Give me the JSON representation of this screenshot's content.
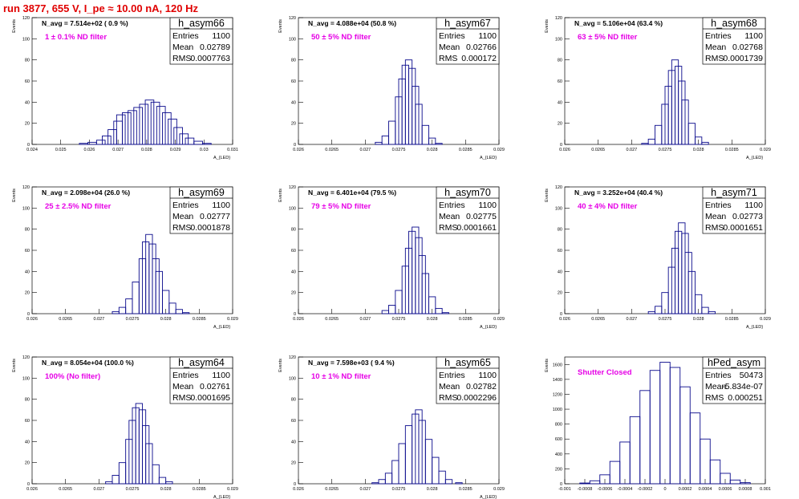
{
  "title": "run 3877,   655 V, I_pe ≈ 10.00 nA, 120 Hz",
  "colors": {
    "title": "#e00000",
    "histogram_line": "#0a0a8c",
    "annotation": "#e600e6"
  },
  "chart_data": [
    {
      "type": "bar",
      "name": "h_asym66",
      "yaxis_label": "Events",
      "xaxis_label": "A_{LED}",
      "xlim": [
        0.024,
        0.031
      ],
      "ylim": [
        0,
        120
      ],
      "xticks": [
        "0.024",
        "0.025",
        "0.026",
        "0.027",
        "0.028",
        "0.029",
        "0.03",
        "0.031"
      ],
      "yticks": [
        "0",
        "20",
        "40",
        "60",
        "80",
        "100",
        "120"
      ],
      "stats": {
        "entries": "1100",
        "mean": "0.02789",
        "rms": "0.0007763"
      },
      "navg": "N_avg = 7.514e+02 ( 0.9 %)",
      "filter": "1 ± 0.1% ND filter",
      "x": [
        0.0258,
        0.0261,
        0.0264,
        0.0266,
        0.0268,
        0.027,
        0.0271,
        0.0273,
        0.0275,
        0.0277,
        0.0279,
        0.0281,
        0.0283,
        0.0285,
        0.0287,
        0.0289,
        0.0291,
        0.0293,
        0.0295,
        0.0298,
        0.0301
      ],
      "values": [
        1,
        2,
        4,
        8,
        14,
        22,
        28,
        30,
        32,
        35,
        38,
        42,
        40,
        36,
        30,
        24,
        16,
        10,
        6,
        3,
        1
      ]
    },
    {
      "type": "bar",
      "name": "h_asym67",
      "yaxis_label": "Events",
      "xaxis_label": "A_{LED}",
      "xlim": [
        0.026,
        0.029
      ],
      "ylim": [
        0,
        120
      ],
      "xticks": [
        "0.026",
        "0.0265",
        "0.027",
        "0.0275",
        "0.028",
        "0.0285",
        "0.029"
      ],
      "yticks": [
        "0",
        "20",
        "40",
        "60",
        "80",
        "100",
        "120"
      ],
      "stats": {
        "entries": "1100",
        "mean": "0.02766",
        "rms": "0.000172"
      },
      "navg": "N_avg = 4.088e+04 (50.8 %)",
      "filter": "50 ± 5% ND filter",
      "x": [
        0.0272,
        0.0273,
        0.0274,
        0.0275,
        0.02755,
        0.0276,
        0.02765,
        0.0277,
        0.02775,
        0.0278,
        0.0279,
        0.028,
        0.0281
      ],
      "values": [
        2,
        8,
        22,
        45,
        62,
        75,
        80,
        72,
        55,
        38,
        18,
        6,
        1
      ]
    },
    {
      "type": "bar",
      "name": "h_asym68",
      "yaxis_label": "Events",
      "xaxis_label": "A_{LED}",
      "xlim": [
        0.026,
        0.029
      ],
      "ylim": [
        0,
        120
      ],
      "xticks": [
        "0.026",
        "0.0265",
        "0.027",
        "0.0275",
        "0.028",
        "0.0285",
        "0.029"
      ],
      "yticks": [
        "0",
        "20",
        "40",
        "60",
        "80",
        "100",
        "120"
      ],
      "stats": {
        "entries": "1100",
        "mean": "0.02768",
        "rms": "0.0001739"
      },
      "navg": "N_avg = 5.106e+04 (63.4 %)",
      "filter": "63 ± 5% ND filter",
      "x": [
        0.0272,
        0.0273,
        0.0274,
        0.0275,
        0.02755,
        0.0276,
        0.02765,
        0.0277,
        0.02775,
        0.0278,
        0.0279,
        0.028,
        0.0281
      ],
      "values": [
        1,
        5,
        18,
        38,
        55,
        70,
        80,
        74,
        60,
        42,
        20,
        7,
        2
      ]
    },
    {
      "type": "bar",
      "name": "h_asym69",
      "yaxis_label": "Events",
      "xaxis_label": "A_{LED}",
      "xlim": [
        0.026,
        0.029
      ],
      "ylim": [
        0,
        120
      ],
      "xticks": [
        "0.026",
        "0.0265",
        "0.027",
        "0.0275",
        "0.028",
        "0.0285",
        "0.029"
      ],
      "yticks": [
        "0",
        "20",
        "40",
        "60",
        "80",
        "100",
        "120"
      ],
      "stats": {
        "entries": "1100",
        "mean": "0.02777",
        "rms": "0.0001878"
      },
      "navg": "N_avg = 2.098e+04 (26.0 %)",
      "filter": "25 ± 2.5% ND filter",
      "x": [
        0.02725,
        0.02735,
        0.02745,
        0.02755,
        0.02765,
        0.0277,
        0.02775,
        0.0278,
        0.02785,
        0.0279,
        0.028,
        0.0281,
        0.0282,
        0.0283
      ],
      "values": [
        2,
        6,
        14,
        30,
        52,
        68,
        75,
        66,
        52,
        40,
        22,
        10,
        4,
        1
      ]
    },
    {
      "type": "bar",
      "name": "h_asym70",
      "yaxis_label": "Events",
      "xaxis_label": "A_{LED}",
      "xlim": [
        0.026,
        0.029
      ],
      "ylim": [
        0,
        120
      ],
      "xticks": [
        "0.026",
        "0.0265",
        "0.027",
        "0.0275",
        "0.028",
        "0.0285",
        "0.029"
      ],
      "yticks": [
        "0",
        "20",
        "40",
        "60",
        "80",
        "100",
        "120"
      ],
      "stats": {
        "entries": "1100",
        "mean": "0.02775",
        "rms": "0.0001661"
      },
      "navg": "N_avg = 6.401e+04 (79.5 %)",
      "filter": "79 ± 5% ND filter",
      "x": [
        0.0273,
        0.0274,
        0.0275,
        0.0276,
        0.02765,
        0.0277,
        0.02775,
        0.0278,
        0.02785,
        0.0279,
        0.028,
        0.0281,
        0.0282
      ],
      "values": [
        3,
        8,
        22,
        45,
        62,
        78,
        82,
        72,
        55,
        38,
        16,
        5,
        1
      ]
    },
    {
      "type": "bar",
      "name": "h_asym71",
      "yaxis_label": "Events",
      "xaxis_label": "A_{LED}",
      "xlim": [
        0.026,
        0.029
      ],
      "ylim": [
        0,
        120
      ],
      "xticks": [
        "0.026",
        "0.0265",
        "0.027",
        "0.0275",
        "0.028",
        "0.0285",
        "0.029"
      ],
      "yticks": [
        "0",
        "20",
        "40",
        "60",
        "80",
        "100",
        "120"
      ],
      "stats": {
        "entries": "1100",
        "mean": "0.02773",
        "rms": "0.0001651"
      },
      "navg": "N_avg = 3.252e+04 (40.4 %)",
      "filter": "40 ± 4% ND filter",
      "x": [
        0.0273,
        0.0274,
        0.0275,
        0.0276,
        0.02765,
        0.0277,
        0.02775,
        0.0278,
        0.02785,
        0.0279,
        0.028,
        0.0281,
        0.0282
      ],
      "values": [
        2,
        7,
        20,
        44,
        62,
        78,
        86,
        76,
        58,
        40,
        18,
        6,
        2
      ]
    },
    {
      "type": "bar",
      "name": "h_asym64",
      "yaxis_label": "Events",
      "xaxis_label": "A_{LED}",
      "xlim": [
        0.026,
        0.029
      ],
      "ylim": [
        0,
        120
      ],
      "xticks": [
        "0.026",
        "0.0265",
        "0.027",
        "0.0275",
        "0.028",
        "0.0285",
        "0.029"
      ],
      "yticks": [
        "0",
        "20",
        "40",
        "60",
        "80",
        "100",
        "120"
      ],
      "stats": {
        "entries": "1100",
        "mean": "0.02761",
        "rms": "0.0001695"
      },
      "navg": "N_avg = 8.054e+04 (100.0 %)",
      "filter": "100% (No filter)",
      "x": [
        0.02715,
        0.02725,
        0.02735,
        0.02745,
        0.0275,
        0.02755,
        0.0276,
        0.02765,
        0.0277,
        0.02775,
        0.02785,
        0.02795,
        0.02805
      ],
      "values": [
        2,
        8,
        20,
        42,
        60,
        72,
        76,
        70,
        55,
        38,
        18,
        6,
        2
      ]
    },
    {
      "type": "bar",
      "name": "h_asym65",
      "yaxis_label": "Events",
      "xaxis_label": "A_{LED}",
      "xlim": [
        0.026,
        0.029
      ],
      "ylim": [
        0,
        120
      ],
      "xticks": [
        "0.026",
        "0.0265",
        "0.027",
        "0.0275",
        "0.028",
        "0.0285",
        "0.029"
      ],
      "yticks": [
        "0",
        "20",
        "40",
        "60",
        "80",
        "100",
        "120"
      ],
      "stats": {
        "entries": "1100",
        "mean": "0.02782",
        "rms": "0.0002296"
      },
      "navg": "N_avg = 7.598e+03 ( 9.4 %)",
      "filter": "10 ± 1% ND filter",
      "x": [
        0.02715,
        0.02725,
        0.02735,
        0.02745,
        0.02755,
        0.02765,
        0.02775,
        0.0278,
        0.02785,
        0.02795,
        0.02805,
        0.02815,
        0.02825,
        0.0284
      ],
      "values": [
        1,
        4,
        10,
        22,
        38,
        55,
        66,
        70,
        60,
        42,
        25,
        12,
        4,
        1
      ]
    },
    {
      "type": "bar",
      "name": "hPed_asym",
      "yaxis_label": "Events",
      "xaxis_label": "",
      "xlim": [
        -0.001,
        0.001
      ],
      "ylim": [
        0,
        1700
      ],
      "xticks": [
        "-0.001",
        "-0.0008",
        "-0.0006",
        "-0.0004",
        "-0.0002",
        "0",
        "0.0002",
        "0.0004",
        "0.0006",
        "0.0008",
        "0.001"
      ],
      "yticks": [
        "0",
        "200",
        "400",
        "600",
        "800",
        "1000",
        "1200",
        "1400",
        "1600"
      ],
      "stats": {
        "entries": "50473",
        "mean": "-5.834e-07",
        "rms": "0.000251"
      },
      "navg": "",
      "filter": "Shutter Closed",
      "x": [
        -0.0008,
        -0.0007,
        -0.0006,
        -0.0005,
        -0.0004,
        -0.0003,
        -0.0002,
        -0.0001,
        0.0,
        0.0001,
        0.0002,
        0.0003,
        0.0004,
        0.0005,
        0.0006,
        0.0007,
        0.0008
      ],
      "values": [
        10,
        40,
        120,
        300,
        560,
        900,
        1250,
        1520,
        1630,
        1560,
        1300,
        950,
        600,
        320,
        140,
        50,
        15
      ]
    }
  ]
}
